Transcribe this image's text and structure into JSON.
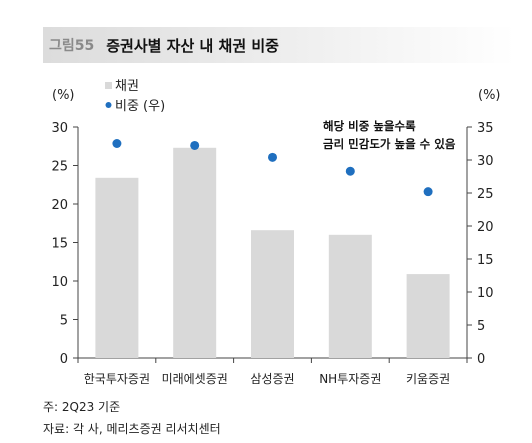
{
  "figure": {
    "number": "그림55",
    "title": "증권사별 자산 내 채권 비중"
  },
  "chart_data": {
    "type": "bar",
    "categories": [
      "한국투자증권",
      "미래에셋증권",
      "삼성증권",
      "NH투자증권",
      "키움증권"
    ],
    "series": [
      {
        "name": "채권",
        "type": "bar",
        "axis": "left",
        "values": [
          23.4,
          27.3,
          16.6,
          16.0,
          10.9
        ],
        "color": "#d9d9d9"
      },
      {
        "name": "비중 (우)",
        "type": "scatter",
        "axis": "right",
        "values": [
          32.5,
          32.2,
          30.4,
          28.3,
          25.2
        ],
        "color": "#1f6fbf"
      }
    ],
    "y_left": {
      "unit": "(%)",
      "ylim": [
        0,
        30
      ],
      "ticks": [
        "0",
        "5",
        "10",
        "15",
        "20",
        "25",
        "30"
      ]
    },
    "y_right": {
      "unit": "(%)",
      "ylim": [
        0,
        35
      ],
      "ticks": [
        "0",
        "5",
        "10",
        "15",
        "20",
        "25",
        "30",
        "35"
      ]
    },
    "annotation": [
      "해당 비중 높을수록",
      "금리 민감도가 높을 수 있음"
    ],
    "legend_position": "top-left",
    "grid": false
  },
  "notes": {
    "footnote": "주: 2Q23 기준",
    "source": "자료: 각 사, 메리츠증권 리서치센터"
  }
}
